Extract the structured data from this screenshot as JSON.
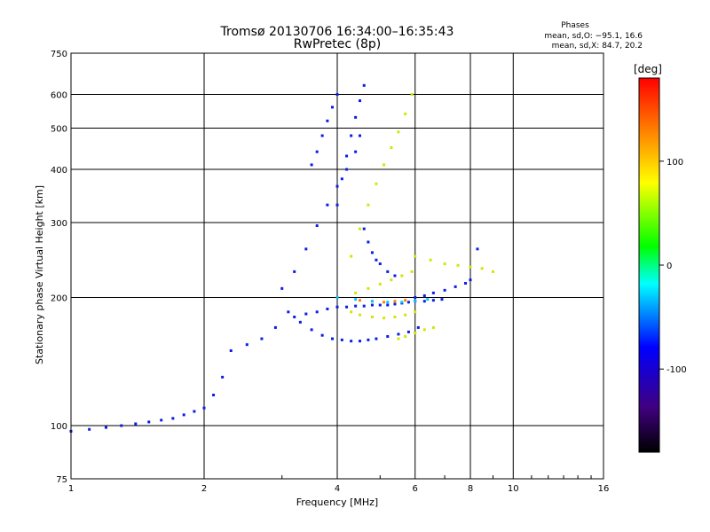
{
  "chart_data": {
    "type": "scatter",
    "title": "Tromsø 20130706 16:34:00–16:35:43",
    "subtitle": "RwPretec (8p)",
    "xlabel": "Frequency [MHz]",
    "ylabel": "Stationary phase Virtual Height [km]",
    "x_scale": "log",
    "y_scale": "log",
    "xlim": [
      1,
      16
    ],
    "ylim": [
      75,
      750
    ],
    "x_ticks": [
      1,
      2,
      4,
      6,
      8,
      10,
      16
    ],
    "y_ticks": [
      75,
      100,
      200,
      300,
      400,
      500,
      600,
      750
    ],
    "grid": true,
    "stats": {
      "heading": "Phases",
      "line1": "mean, sd,O: −95.1, 16.6",
      "line2": "mean, sd,X:  84.7, 20.2"
    },
    "colorbar": {
      "label": "[deg]",
      "range": [
        -180,
        180
      ],
      "ticks": [
        100,
        0,
        -100
      ],
      "colors": [
        "#000000",
        "#400080",
        "#0000ff",
        "#00ffff",
        "#00ff00",
        "#ffff00",
        "#ff8000",
        "#ff0000"
      ]
    },
    "series": [
      {
        "color": "#0a1ee6",
        "phase": -100,
        "traces": [
          {
            "x": [
              1.0,
              1.1,
              1.2,
              1.3,
              1.4,
              1.5,
              1.6,
              1.7,
              1.8,
              1.9,
              2.0,
              2.1,
              2.2,
              2.3,
              2.5,
              2.7,
              2.9,
              3.1
            ],
            "y": [
              97,
              98,
              99,
              100,
              101,
              102,
              103,
              104,
              106,
              108,
              110,
              118,
              130,
              150,
              155,
              160,
              170,
              185
            ]
          },
          {
            "x": [
              3.2,
              3.4,
              3.6,
              3.8,
              4.0,
              4.2,
              4.4,
              4.6,
              4.8,
              5.0,
              5.2,
              5.4,
              5.6,
              5.8,
              6.0,
              6.3,
              6.6,
              6.9
            ],
            "y": [
              180,
              183,
              185,
              188,
              190,
              190,
              191,
              191,
              192,
              192,
              192,
              193,
              194,
              195,
              196,
              196,
              197,
              198
            ]
          },
          {
            "x": [
              3.3,
              3.5,
              3.7,
              3.9,
              4.1,
              4.3,
              4.5,
              4.7,
              4.9,
              5.2,
              5.5,
              5.8,
              6.1
            ],
            "y": [
              175,
              168,
              163,
              160,
              159,
              158,
              158,
              159,
              160,
              162,
              164,
              166,
              170
            ]
          },
          {
            "x": [
              3.0,
              3.2,
              3.4,
              3.6,
              3.8,
              4.0,
              4.2,
              4.4,
              4.5
            ],
            "y": [
              210,
              230,
              260,
              295,
              330,
              365,
              400,
              440,
              480
            ]
          },
          {
            "x": [
              4.0,
              4.1,
              4.2,
              4.3,
              4.4,
              4.5,
              4.6
            ],
            "y": [
              330,
              380,
              430,
              480,
              530,
              580,
              630
            ]
          },
          {
            "x": [
              3.5,
              3.6,
              3.7,
              3.8,
              3.9,
              4.0
            ],
            "y": [
              410,
              440,
              480,
              520,
              560,
              600
            ]
          },
          {
            "x": [
              4.6,
              4.7,
              4.8,
              4.9,
              5.0,
              5.2,
              5.4
            ],
            "y": [
              290,
              270,
              255,
              245,
              240,
              230,
              225
            ]
          },
          {
            "x": [
              6.0,
              6.3,
              6.6,
              7.0,
              7.4,
              7.8,
              8.0,
              8.3
            ],
            "y": [
              200,
              202,
              205,
              208,
              212,
              216,
              220,
              260
            ]
          }
        ]
      },
      {
        "color": "#d4e600",
        "phase": 100,
        "traces": [
          {
            "x": [
              4.3,
              4.5,
              4.7,
              4.9,
              5.1,
              5.3,
              5.5,
              5.7,
              5.9
            ],
            "y": [
              250,
              290,
              330,
              370,
              410,
              450,
              490,
              540,
              600
            ]
          },
          {
            "x": [
              4.3,
              4.5,
              4.8,
              5.1,
              5.4,
              5.7,
              6.0
            ],
            "y": [
              185,
              182,
              180,
              179,
              180,
              182,
              185
            ]
          },
          {
            "x": [
              4.4,
              4.7,
              5.0,
              5.3,
              5.6,
              5.9
            ],
            "y": [
              205,
              210,
              215,
              220,
              225,
              230
            ]
          },
          {
            "x": [
              5.5,
              5.7,
              6.0,
              6.3,
              6.6
            ],
            "y": [
              160,
              162,
              165,
              168,
              170
            ]
          },
          {
            "x": [
              6.0,
              6.5,
              7.0,
              7.5,
              8.0,
              8.5,
              9.0
            ],
            "y": [
              250,
              245,
              240,
              238,
              236,
              234,
              230
            ]
          }
        ]
      },
      {
        "color": "#ff8000",
        "phase": 150,
        "traces": [
          {
            "x": [
              4.5,
              4.8,
              5.1,
              5.4,
              5.7
            ],
            "y": [
              197,
              196,
              195,
              196,
              197
            ]
          }
        ]
      },
      {
        "color": "#00c8ff",
        "phase": -40,
        "traces": [
          {
            "x": [
              4.0,
              4.4,
              4.8,
              5.2,
              5.6,
              6.0,
              6.4
            ],
            "y": [
              200,
              198,
              196,
              195,
              195,
              196,
              198
            ]
          }
        ]
      }
    ]
  }
}
